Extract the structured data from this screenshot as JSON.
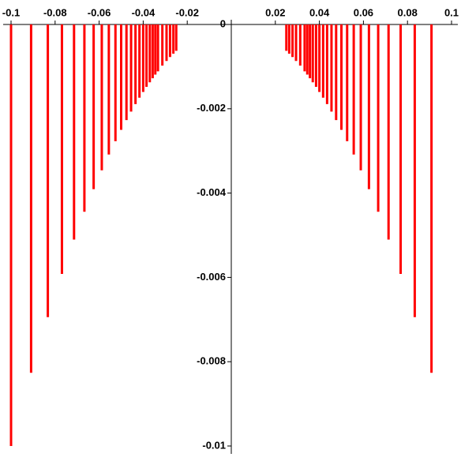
{
  "chart_data": {
    "type": "line",
    "x": [
      -0.1,
      -0.1,
      null,
      -0.0909,
      -0.0909,
      null,
      -0.0833,
      -0.0833,
      null,
      -0.0769,
      -0.0769,
      null,
      -0.0714,
      -0.0714,
      null,
      -0.0667,
      -0.0667,
      null,
      -0.0625,
      -0.0625,
      null,
      -0.0588,
      -0.0588,
      null,
      -0.0556,
      -0.0556,
      null,
      -0.0526,
      -0.0526,
      null,
      -0.05,
      -0.05,
      null,
      -0.0476,
      -0.0476,
      null,
      -0.0455,
      -0.0455,
      null,
      -0.0435,
      -0.0435,
      null,
      -0.0417,
      -0.0417,
      null,
      -0.04,
      -0.04,
      null,
      -0.0385,
      -0.0385,
      null,
      -0.037,
      -0.037,
      null,
      -0.0357,
      -0.0357,
      null,
      -0.0345,
      -0.0345,
      null,
      -0.0333,
      -0.0333,
      null,
      -0.0313,
      -0.0313,
      null,
      -0.0294,
      -0.0294,
      null,
      -0.0278,
      -0.0278,
      null,
      -0.0263,
      -0.0263,
      null,
      -0.025,
      -0.025,
      null,
      0.025,
      0.025,
      null,
      0.0263,
      0.0263,
      null,
      0.0278,
      0.0278,
      null,
      0.0294,
      0.0294,
      null,
      0.0313,
      0.0313,
      null,
      0.0333,
      0.0333,
      null,
      0.0345,
      0.0345,
      null,
      0.0357,
      0.0357,
      null,
      0.037,
      0.037,
      null,
      0.0385,
      0.0385,
      null,
      0.04,
      0.04,
      null,
      0.0417,
      0.0417,
      null,
      0.0435,
      0.0435,
      null,
      0.0455,
      0.0455,
      null,
      0.0476,
      0.0476,
      null,
      0.05,
      0.05,
      null,
      0.0526,
      0.0526,
      null,
      0.0556,
      0.0556,
      null,
      0.0588,
      0.0588,
      null,
      0.0625,
      0.0625,
      null,
      0.0667,
      0.0667,
      null,
      0.0714,
      0.0714,
      null,
      0.0769,
      0.0769,
      null,
      0.0833,
      0.0833,
      null,
      0.0909,
      0.0909
    ],
    "y": [
      -0.01,
      0,
      null,
      -0.008264,
      0,
      null,
      -0.006944,
      0,
      null,
      -0.005917,
      0,
      null,
      -0.005102,
      0,
      null,
      -0.004444,
      0,
      null,
      -0.003906,
      0,
      null,
      -0.00346,
      0,
      null,
      -0.003086,
      0,
      null,
      -0.00277,
      0,
      null,
      -0.0025,
      0,
      null,
      -0.002268,
      0,
      null,
      -0.002066,
      0,
      null,
      -0.00189,
      0,
      null,
      -0.001736,
      0,
      null,
      -0.0016,
      0,
      null,
      -0.001479,
      0,
      null,
      -0.001372,
      0,
      null,
      -0.001276,
      0,
      null,
      -0.001189,
      0,
      null,
      -0.001111,
      0,
      null,
      -0.000977,
      0,
      null,
      -0.000865,
      0,
      null,
      -0.000772,
      0,
      null,
      -0.000693,
      0,
      null,
      -0.000625,
      0,
      null,
      -0.000625,
      0,
      null,
      -0.000693,
      0,
      null,
      -0.000772,
      0,
      null,
      -0.000865,
      0,
      null,
      -0.000977,
      0,
      null,
      -0.001111,
      0,
      null,
      -0.001189,
      0,
      null,
      -0.001276,
      0,
      null,
      -0.001372,
      0,
      null,
      -0.001479,
      0,
      null,
      -0.0016,
      0,
      null,
      -0.001736,
      0,
      null,
      -0.00189,
      0,
      null,
      -0.002066,
      0,
      null,
      -0.002268,
      0,
      null,
      -0.0025,
      0,
      null,
      -0.00277,
      0,
      null,
      -0.003086,
      0,
      null,
      -0.00346,
      0,
      null,
      -0.003906,
      0,
      null,
      -0.004444,
      0,
      null,
      -0.005102,
      0,
      null,
      -0.005917,
      0,
      null,
      -0.006944,
      0,
      null,
      -0.008264,
      0
    ],
    "color": "#ff0000",
    "xlim": [
      -0.1,
      0.1
    ],
    "xticks": [
      -0.1,
      -0.08,
      -0.06,
      -0.04,
      -0.02,
      0.02,
      0.04,
      0.06,
      0.08,
      0.1
    ],
    "ylim": [
      -0.01,
      0
    ],
    "yticks": [
      0,
      -0.002,
      -0.004,
      -0.006,
      -0.008,
      -0.01
    ]
  }
}
